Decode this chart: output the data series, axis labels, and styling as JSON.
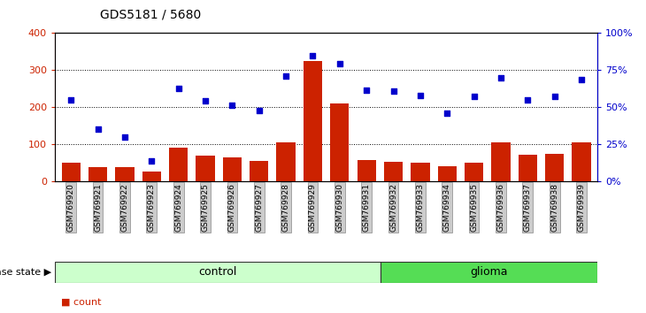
{
  "title": "GDS5181 / 5680",
  "samples": [
    "GSM769920",
    "GSM769921",
    "GSM769922",
    "GSM769923",
    "GSM769924",
    "GSM769925",
    "GSM769926",
    "GSM769927",
    "GSM769928",
    "GSM769929",
    "GSM769930",
    "GSM769931",
    "GSM769932",
    "GSM769933",
    "GSM769934",
    "GSM769935",
    "GSM769936",
    "GSM769937",
    "GSM769938",
    "GSM769939"
  ],
  "counts": [
    50,
    38,
    38,
    28,
    92,
    70,
    65,
    55,
    105,
    325,
    210,
    58,
    52,
    50,
    42,
    50,
    105,
    72,
    75,
    105
  ],
  "percentile": [
    220,
    140,
    120,
    55,
    250,
    218,
    205,
    192,
    285,
    338,
    318,
    245,
    243,
    232,
    183,
    230,
    278,
    220,
    228,
    275
  ],
  "control_count": 12,
  "glioma_count": 8,
  "control_color": "#ccffcc",
  "glioma_color": "#55dd55",
  "bar_color": "#cc2200",
  "dot_color": "#0000cc",
  "ylim": [
    0,
    400
  ],
  "yticks_left": [
    0,
    100,
    200,
    300,
    400
  ],
  "ytick_labels_left": [
    "0",
    "100",
    "200",
    "300",
    "400"
  ],
  "ytick_labels_right": [
    "0%",
    "25%",
    "50%",
    "75%",
    "100%"
  ],
  "grid_color": "black",
  "tick_bg_color": "#cccccc",
  "tick_border_color": "#888888"
}
